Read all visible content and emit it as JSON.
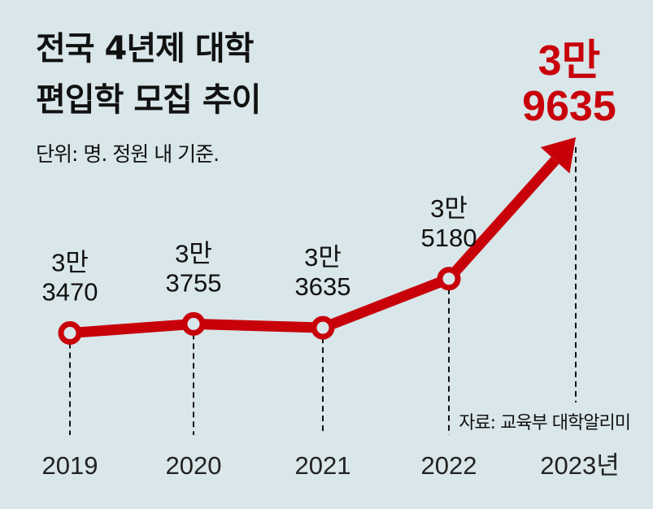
{
  "title_lines": [
    "전국 4년제 대학",
    "편입학 모집 추이"
  ],
  "subtitle": "단위: 명. 정원 내 기준.",
  "source": "자료: 교육부 대학알리미",
  "colors": {
    "line": "#c8000a",
    "background": "#d9e6ea"
  },
  "chart_data": {
    "type": "line",
    "title": "전국 4년제 대학 편입학 모집 추이",
    "xlabel": "",
    "ylabel": "명",
    "categories": [
      "2019",
      "2020",
      "2021",
      "2022",
      "2023년"
    ],
    "values": [
      33470,
      33755,
      33635,
      35180,
      39635
    ],
    "labels": [
      [
        "3만",
        "3470"
      ],
      [
        "3만",
        "3755"
      ],
      [
        "3만",
        "3635"
      ],
      [
        "3만",
        "5180"
      ],
      [
        "3만",
        "9635"
      ]
    ],
    "ylim": [
      30000,
      41400
    ],
    "grid": false,
    "last_point_style": "arrow"
  }
}
